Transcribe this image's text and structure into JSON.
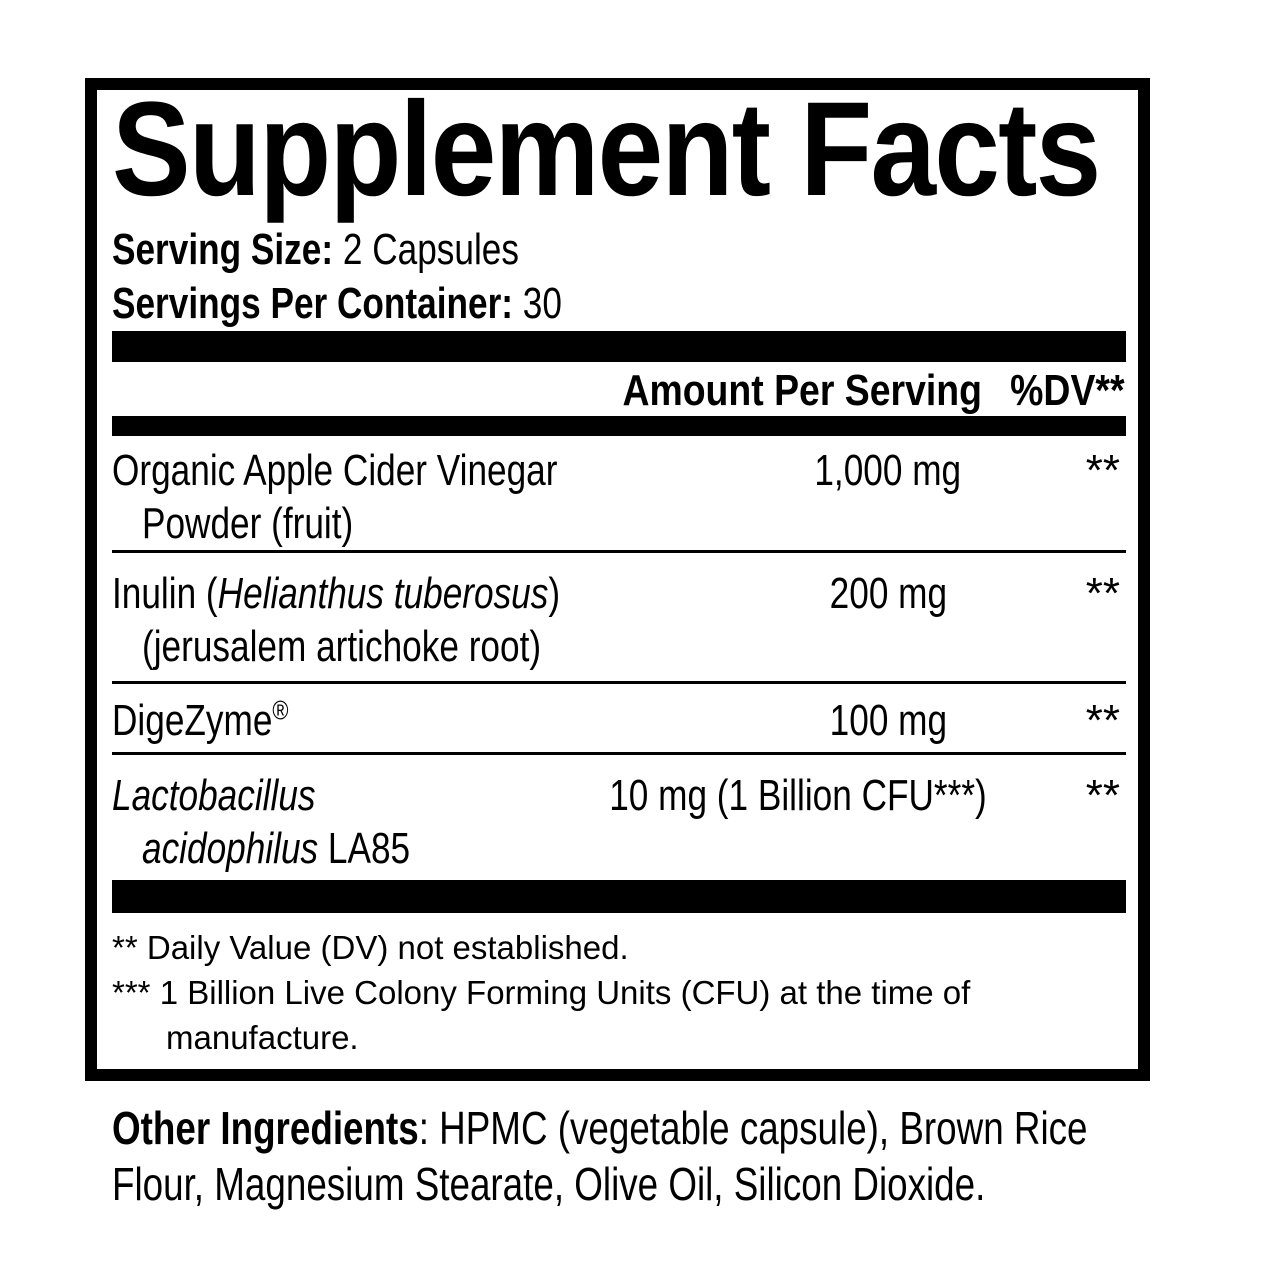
{
  "colors": {
    "ink": "#000000",
    "background": "#ffffff"
  },
  "title": "Supplement Facts",
  "serving": {
    "size_label": "Serving Size:",
    "size_value": "2 Capsules",
    "per_container_label": "Servings Per Container:",
    "per_container_value": "30"
  },
  "table": {
    "amount_header": "Amount Per Serving",
    "dv_header": "%DV**",
    "rows": [
      {
        "name_line1": "Organic Apple Cider Vinegar",
        "name_line2": "Powder (fruit)",
        "amount": "1,000 mg",
        "dv": "**"
      },
      {
        "name_line1_regular": "Inulin (",
        "name_line1_italic": "Helianthus tuberosus",
        "name_line1_close": ")",
        "name_line2": "(jerusalem artichoke root)",
        "amount": "200 mg",
        "dv": "**"
      },
      {
        "name": "DigeZyme",
        "trademark": "®",
        "amount": "100 mg",
        "dv": "**"
      },
      {
        "name_line1_italic": "Lactobacillus",
        "name_line2_italic": "acidophilus",
        "name_line2_regular": "LA85",
        "amount": "10 mg (1 Billion CFU***)",
        "dv": "**"
      }
    ]
  },
  "footnotes": {
    "dv_note": {
      "marker": "**",
      "text": "Daily Value (DV) not established."
    },
    "cfu_note": {
      "marker": "***",
      "line1": "1 Billion Live Colony Forming Units (CFU) at the time of",
      "line2": "manufacture."
    }
  },
  "other_ingredients": {
    "label": "Other Ingredients",
    "colon": ":",
    "line1": "HPMC (vegetable capsule), Brown Rice",
    "line2": "Flour, Magnesium Stearate, Olive Oil, Silicon Dioxide."
  }
}
